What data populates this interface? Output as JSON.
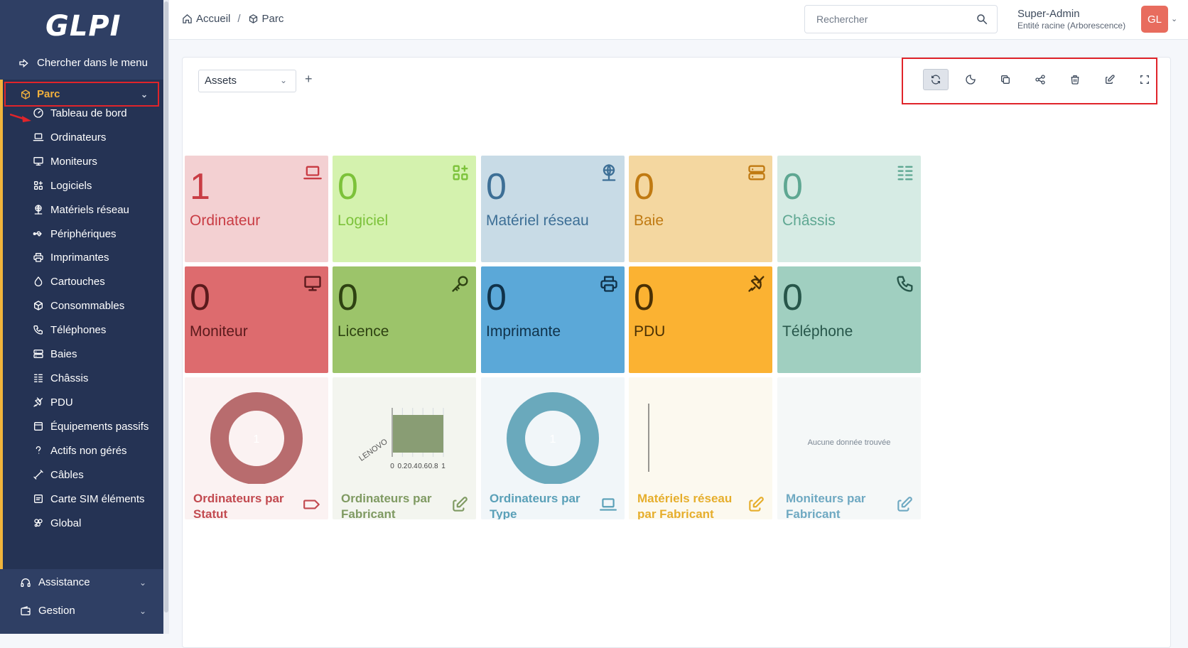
{
  "app": {
    "logo": "GLPI"
  },
  "sidebar": {
    "search_label": "Chercher dans le menu",
    "section": {
      "label": "Parc"
    },
    "items": [
      {
        "label": "Tableau de bord",
        "icon": "dashboard-gauge-icon"
      },
      {
        "label": "Ordinateurs",
        "icon": "laptop-icon"
      },
      {
        "label": "Moniteurs",
        "icon": "monitor-icon"
      },
      {
        "label": "Logiciels",
        "icon": "apps-icon"
      },
      {
        "label": "Matériels réseau",
        "icon": "network-icon"
      },
      {
        "label": "Périphériques",
        "icon": "usb-icon"
      },
      {
        "label": "Imprimantes",
        "icon": "printer-icon"
      },
      {
        "label": "Cartouches",
        "icon": "droplet-icon"
      },
      {
        "label": "Consommables",
        "icon": "box-icon"
      },
      {
        "label": "Téléphones",
        "icon": "phone-icon"
      },
      {
        "label": "Baies",
        "icon": "server-icon"
      },
      {
        "label": "Châssis",
        "icon": "list-details-icon"
      },
      {
        "label": "PDU",
        "icon": "plug-icon"
      },
      {
        "label": "Équipements passifs",
        "icon": "device-icon"
      },
      {
        "label": "Actifs non gérés",
        "icon": "question-icon"
      },
      {
        "label": "Câbles",
        "icon": "cable-icon"
      },
      {
        "label": "Carte SIM éléments",
        "icon": "sim-card-icon"
      },
      {
        "label": "Global",
        "icon": "global-icon"
      }
    ],
    "bottom": [
      {
        "label": "Assistance",
        "icon": "headset-icon"
      },
      {
        "label": "Gestion",
        "icon": "wallet-icon"
      }
    ]
  },
  "header": {
    "breadcrumb": [
      {
        "label": "Accueil",
        "icon": "home-icon"
      },
      {
        "label": "Parc",
        "icon": "box-icon"
      }
    ],
    "breadcrumb_sep": "/",
    "search_placeholder": "Rechercher",
    "user_name": "Super-Admin",
    "user_entity": "Entité racine (Arborescence)",
    "avatar_initials": "GL"
  },
  "dashboard": {
    "selected": "Assets",
    "add_label": "+",
    "toolbar": [
      "refresh-icon",
      "moon-icon",
      "copy-icon",
      "share-icon",
      "trash-icon",
      "edit-icon",
      "fullscreen-icon"
    ],
    "cards_row1": [
      {
        "value": "1",
        "label": "Ordinateur",
        "bg": "#f3d0d2",
        "fg": "#c93c44",
        "icon": "laptop-icon"
      },
      {
        "value": "0",
        "label": "Logiciel",
        "bg": "#d4f2ae",
        "fg": "#7cc23a",
        "icon": "apps-icon"
      },
      {
        "value": "0",
        "label": "Matériel réseau",
        "bg": "#c8dbe6",
        "fg": "#3d6f96",
        "icon": "network-icon"
      },
      {
        "value": "0",
        "label": "Baie",
        "bg": "#f4d7a0",
        "fg": "#c07a12",
        "icon": "server-icon"
      },
      {
        "value": "0",
        "label": "Châssis",
        "bg": "#d6ebe4",
        "fg": "#5ea792",
        "icon": "list-details-icon"
      }
    ],
    "cards_row2": [
      {
        "value": "0",
        "label": "Moniteur",
        "bg": "#dd6b6e",
        "fg": "#5a1a1c",
        "icon": "monitor-icon"
      },
      {
        "value": "0",
        "label": "Licence",
        "bg": "#9cc46a",
        "fg": "#2e4212",
        "icon": "key-icon"
      },
      {
        "value": "0",
        "label": "Imprimante",
        "bg": "#5ba8d8",
        "fg": "#10324a",
        "icon": "printer-icon"
      },
      {
        "value": "0",
        "label": "PDU",
        "bg": "#fbb232",
        "fg": "#4a3004",
        "icon": "plug-icon"
      },
      {
        "value": "0",
        "label": "Téléphone",
        "bg": "#a0cfc0",
        "fg": "#27564a",
        "icon": "phone-icon"
      }
    ],
    "charts": [
      {
        "title": "Ordinateurs par Statut",
        "bg": "#fbf2f2",
        "fg": "#c24a50",
        "icon": "tag-icon"
      },
      {
        "title": "Ordinateurs par Fabricant",
        "bg": "#f3f5ef",
        "fg": "#7f9a62",
        "icon": "edit-icon"
      },
      {
        "title": "Ordinateurs par Type",
        "bg": "#f1f6f9",
        "fg": "#5aa0b8",
        "icon": "laptop-icon"
      },
      {
        "title": "Matériels réseau par Fabricant",
        "bg": "#fcf9ef",
        "fg": "#e6ae2c",
        "icon": "edit-icon"
      },
      {
        "title": "Moniteurs par Fabricant",
        "bg": "#f5f8f8",
        "fg": "#6fa9c2",
        "icon": "edit-icon"
      }
    ],
    "no_data": "Aucune donnée trouvée"
  },
  "chart_data": [
    {
      "type": "pie",
      "title": "Ordinateurs par Statut",
      "values": [
        1
      ],
      "labels": [
        "1"
      ],
      "color": "#b86c6e"
    },
    {
      "type": "bar",
      "title": "Ordinateurs par Fabricant",
      "categories": [
        "LENOVO"
      ],
      "values": [
        1
      ],
      "xlim": [
        0,
        1
      ],
      "ticks": [
        "0",
        "0.2",
        "0.4",
        "0.6",
        "0.8",
        "1"
      ],
      "orientation": "horizontal",
      "color": "#899d74"
    },
    {
      "type": "pie",
      "title": "Ordinateurs par Type",
      "values": [
        1
      ],
      "labels": [
        "1"
      ],
      "color": "#6aa9bc"
    },
    {
      "type": "bar",
      "title": "Matériels réseau par Fabricant",
      "categories": [],
      "values": []
    },
    {
      "type": "table",
      "title": "Moniteurs par Fabricant",
      "values": []
    }
  ]
}
